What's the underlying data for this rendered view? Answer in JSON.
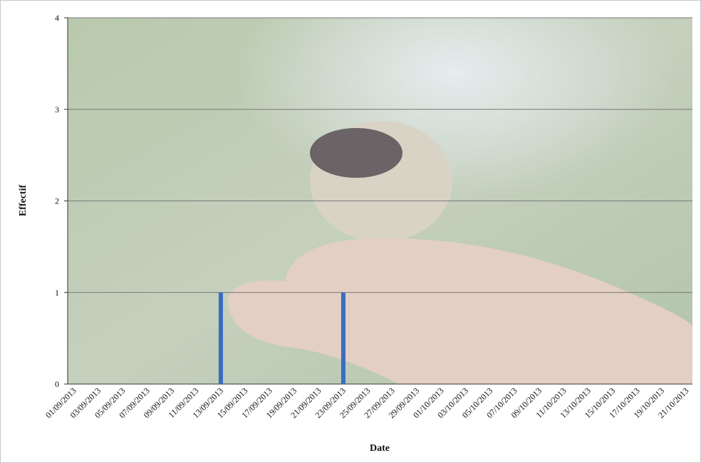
{
  "chart_data": {
    "type": "bar",
    "x_label": "Date",
    "y_label": "Effectif",
    "categories": [
      "01/09/2013",
      null,
      "03/09/2013",
      null,
      "05/09/2013",
      null,
      "07/09/2013",
      null,
      "09/09/2013",
      null,
      "11/09/2013",
      null,
      "13/09/2013",
      null,
      "15/09/2013",
      null,
      "17/09/2013",
      null,
      "19/09/2013",
      null,
      "21/09/2013",
      null,
      "23/09/2013",
      null,
      "25/09/2013",
      null,
      "27/09/2013",
      null,
      "29/09/2013",
      null,
      "01/10/2013",
      null,
      "03/10/2013",
      null,
      "05/10/2013",
      null,
      "07/10/2013",
      null,
      "09/10/2013",
      null,
      "11/10/2013",
      null,
      "13/10/2013",
      null,
      "15/10/2013",
      null,
      "17/10/2013",
      null,
      "19/10/2013",
      null,
      "21/10/2013"
    ],
    "values": [
      0,
      0,
      0,
      0,
      0,
      0,
      0,
      0,
      0,
      0,
      0,
      0,
      1,
      0,
      0,
      0,
      0,
      0,
      0,
      0,
      0,
      0,
      1,
      0,
      0,
      0,
      0,
      0,
      0,
      0,
      0,
      0,
      0,
      0,
      0,
      0,
      0,
      0,
      0,
      0,
      0,
      0,
      0,
      0,
      0,
      0,
      0,
      0,
      0,
      0,
      0
    ],
    "color": "#3a6cc0",
    "ylim": [
      0,
      4
    ],
    "yticks": [
      0,
      1,
      2,
      3,
      4
    ],
    "grid": true
  }
}
